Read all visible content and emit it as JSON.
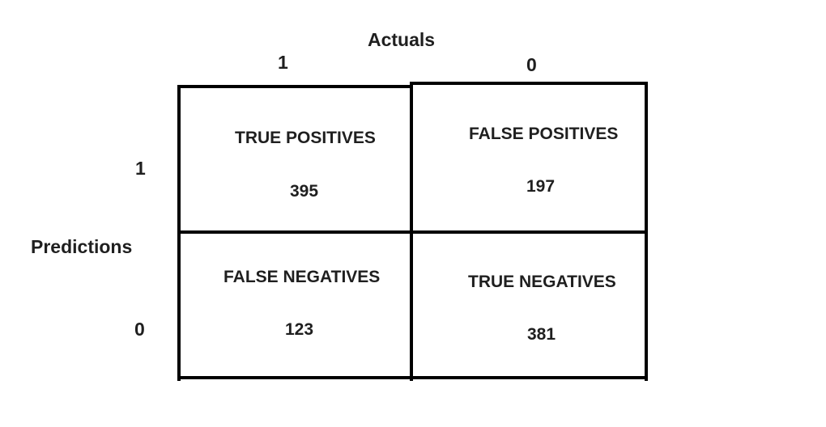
{
  "axes": {
    "actuals_title": "Actuals",
    "predictions_title": "Predictions",
    "column_headers": [
      "1",
      "0"
    ],
    "row_headers": [
      "1",
      "0"
    ]
  },
  "cells": {
    "true_positives": {
      "label": "TRUE POSITIVES",
      "value": "395"
    },
    "false_positives": {
      "label": "FALSE POSITIVES",
      "value": "197"
    },
    "false_negatives": {
      "label": "FALSE NEGATIVES",
      "value": "123"
    },
    "true_negatives": {
      "label": "TRUE NEGATIVES",
      "value": "381"
    }
  },
  "colors": {
    "text": "#1f1f1f",
    "grid": "#000000",
    "background": "#ffffff"
  }
}
